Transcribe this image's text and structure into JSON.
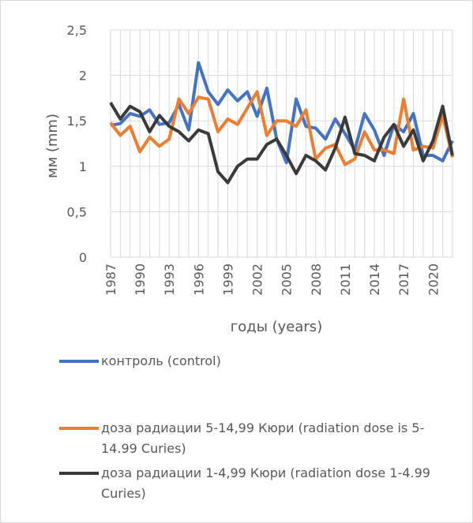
{
  "chart_data": {
    "type": "line",
    "y_label": "мм (mm)",
    "x_label": "годы (years)",
    "categories": [
      "1987",
      null,
      null,
      "1990",
      null,
      null,
      "1993",
      null,
      null,
      "1996",
      null,
      null,
      "1999",
      null,
      null,
      "2002",
      null,
      null,
      "2005",
      null,
      null,
      "2008",
      null,
      null,
      "2011",
      null,
      null,
      "2014",
      null,
      null,
      "2017",
      null,
      null,
      "2020",
      null,
      null
    ],
    "series": [
      {
        "name": "контроль (control)",
        "color": "#4472c4",
        "values": [
          1.45,
          1.47,
          1.58,
          1.55,
          1.62,
          1.46,
          1.48,
          1.68,
          1.4,
          2.14,
          1.82,
          1.68,
          1.84,
          1.72,
          1.82,
          1.55,
          1.86,
          1.3,
          1.04,
          1.74,
          1.44,
          1.42,
          1.3,
          1.52,
          1.36,
          1.18,
          1.58,
          1.4,
          1.12,
          1.46,
          1.38,
          1.58,
          1.12,
          1.12,
          1.06,
          1.28
        ]
      },
      {
        "name": "доза радиации 5-14,99 Кюри (radiation dose is 5-14.99 Curies)",
        "color": "#ed7d31",
        "values": [
          1.48,
          1.34,
          1.44,
          1.16,
          1.32,
          1.22,
          1.3,
          1.74,
          1.58,
          1.76,
          1.74,
          1.38,
          1.52,
          1.46,
          1.64,
          1.82,
          1.34,
          1.5,
          1.5,
          1.44,
          1.62,
          1.08,
          1.2,
          1.24,
          1.02,
          1.08,
          1.38,
          1.18,
          1.18,
          1.14,
          1.74,
          1.18,
          1.22,
          1.2,
          1.56,
          1.1
        ]
      },
      {
        "name": "доза радиации 1-4,99 Кюри (radiation dose 1-4.99 Curies)",
        "color": "#3a3a3a",
        "values": [
          1.7,
          1.52,
          1.66,
          1.6,
          1.38,
          1.56,
          1.44,
          1.38,
          1.28,
          1.4,
          1.36,
          0.94,
          0.82,
          1.0,
          1.08,
          1.08,
          1.24,
          1.3,
          1.12,
          0.92,
          1.12,
          1.06,
          0.96,
          1.2,
          1.54,
          1.14,
          1.12,
          1.06,
          1.32,
          1.46,
          1.22,
          1.4,
          1.06,
          1.28,
          1.66,
          1.12
        ]
      }
    ],
    "ylim": [
      0,
      2.5
    ],
    "yticks": [
      0,
      {
        "value": 0.5,
        "label": "0,5"
      },
      1,
      {
        "value": 1.5,
        "label": "1,5"
      },
      2,
      {
        "value": 2.5,
        "label": "2,5"
      }
    ],
    "grid": true
  }
}
